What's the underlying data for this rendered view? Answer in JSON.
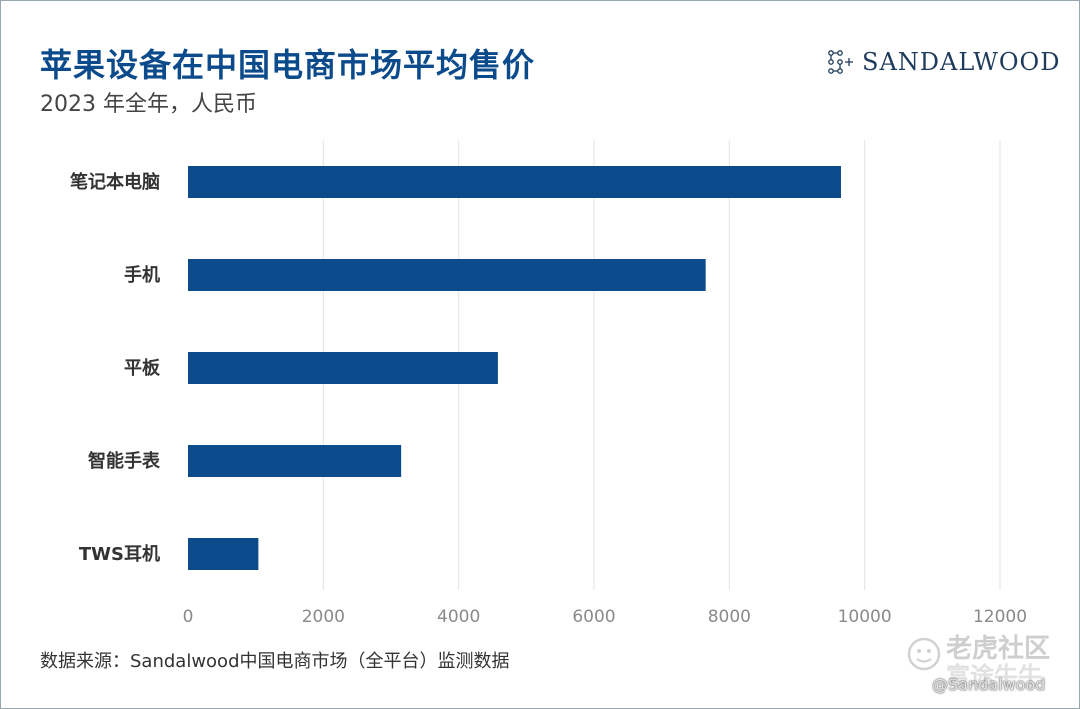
{
  "header": {
    "title": "苹果设备在中国电商市场平均售价",
    "subtitle": "2023 年全年，人民币",
    "logo_text": "SANDALWOOD"
  },
  "chart_data": {
    "type": "bar",
    "orientation": "horizontal",
    "categories": [
      "笔记本电脑",
      "手机",
      "平板",
      "智能手表",
      "TWS耳机"
    ],
    "values": [
      9650,
      7650,
      4580,
      3150,
      1040
    ],
    "xlim": [
      0,
      12000
    ],
    "xticks": [
      0,
      2000,
      4000,
      6000,
      8000,
      10000,
      12000
    ],
    "grid": true,
    "bar_color": "#0b4a8b"
  },
  "footer": {
    "source": "数据来源：Sandalwood中国电商市场（全平台）监测数据"
  },
  "watermark": {
    "main": "老虎社区",
    "sub": "富途牛牛",
    "handle": "@Sandalwood"
  }
}
